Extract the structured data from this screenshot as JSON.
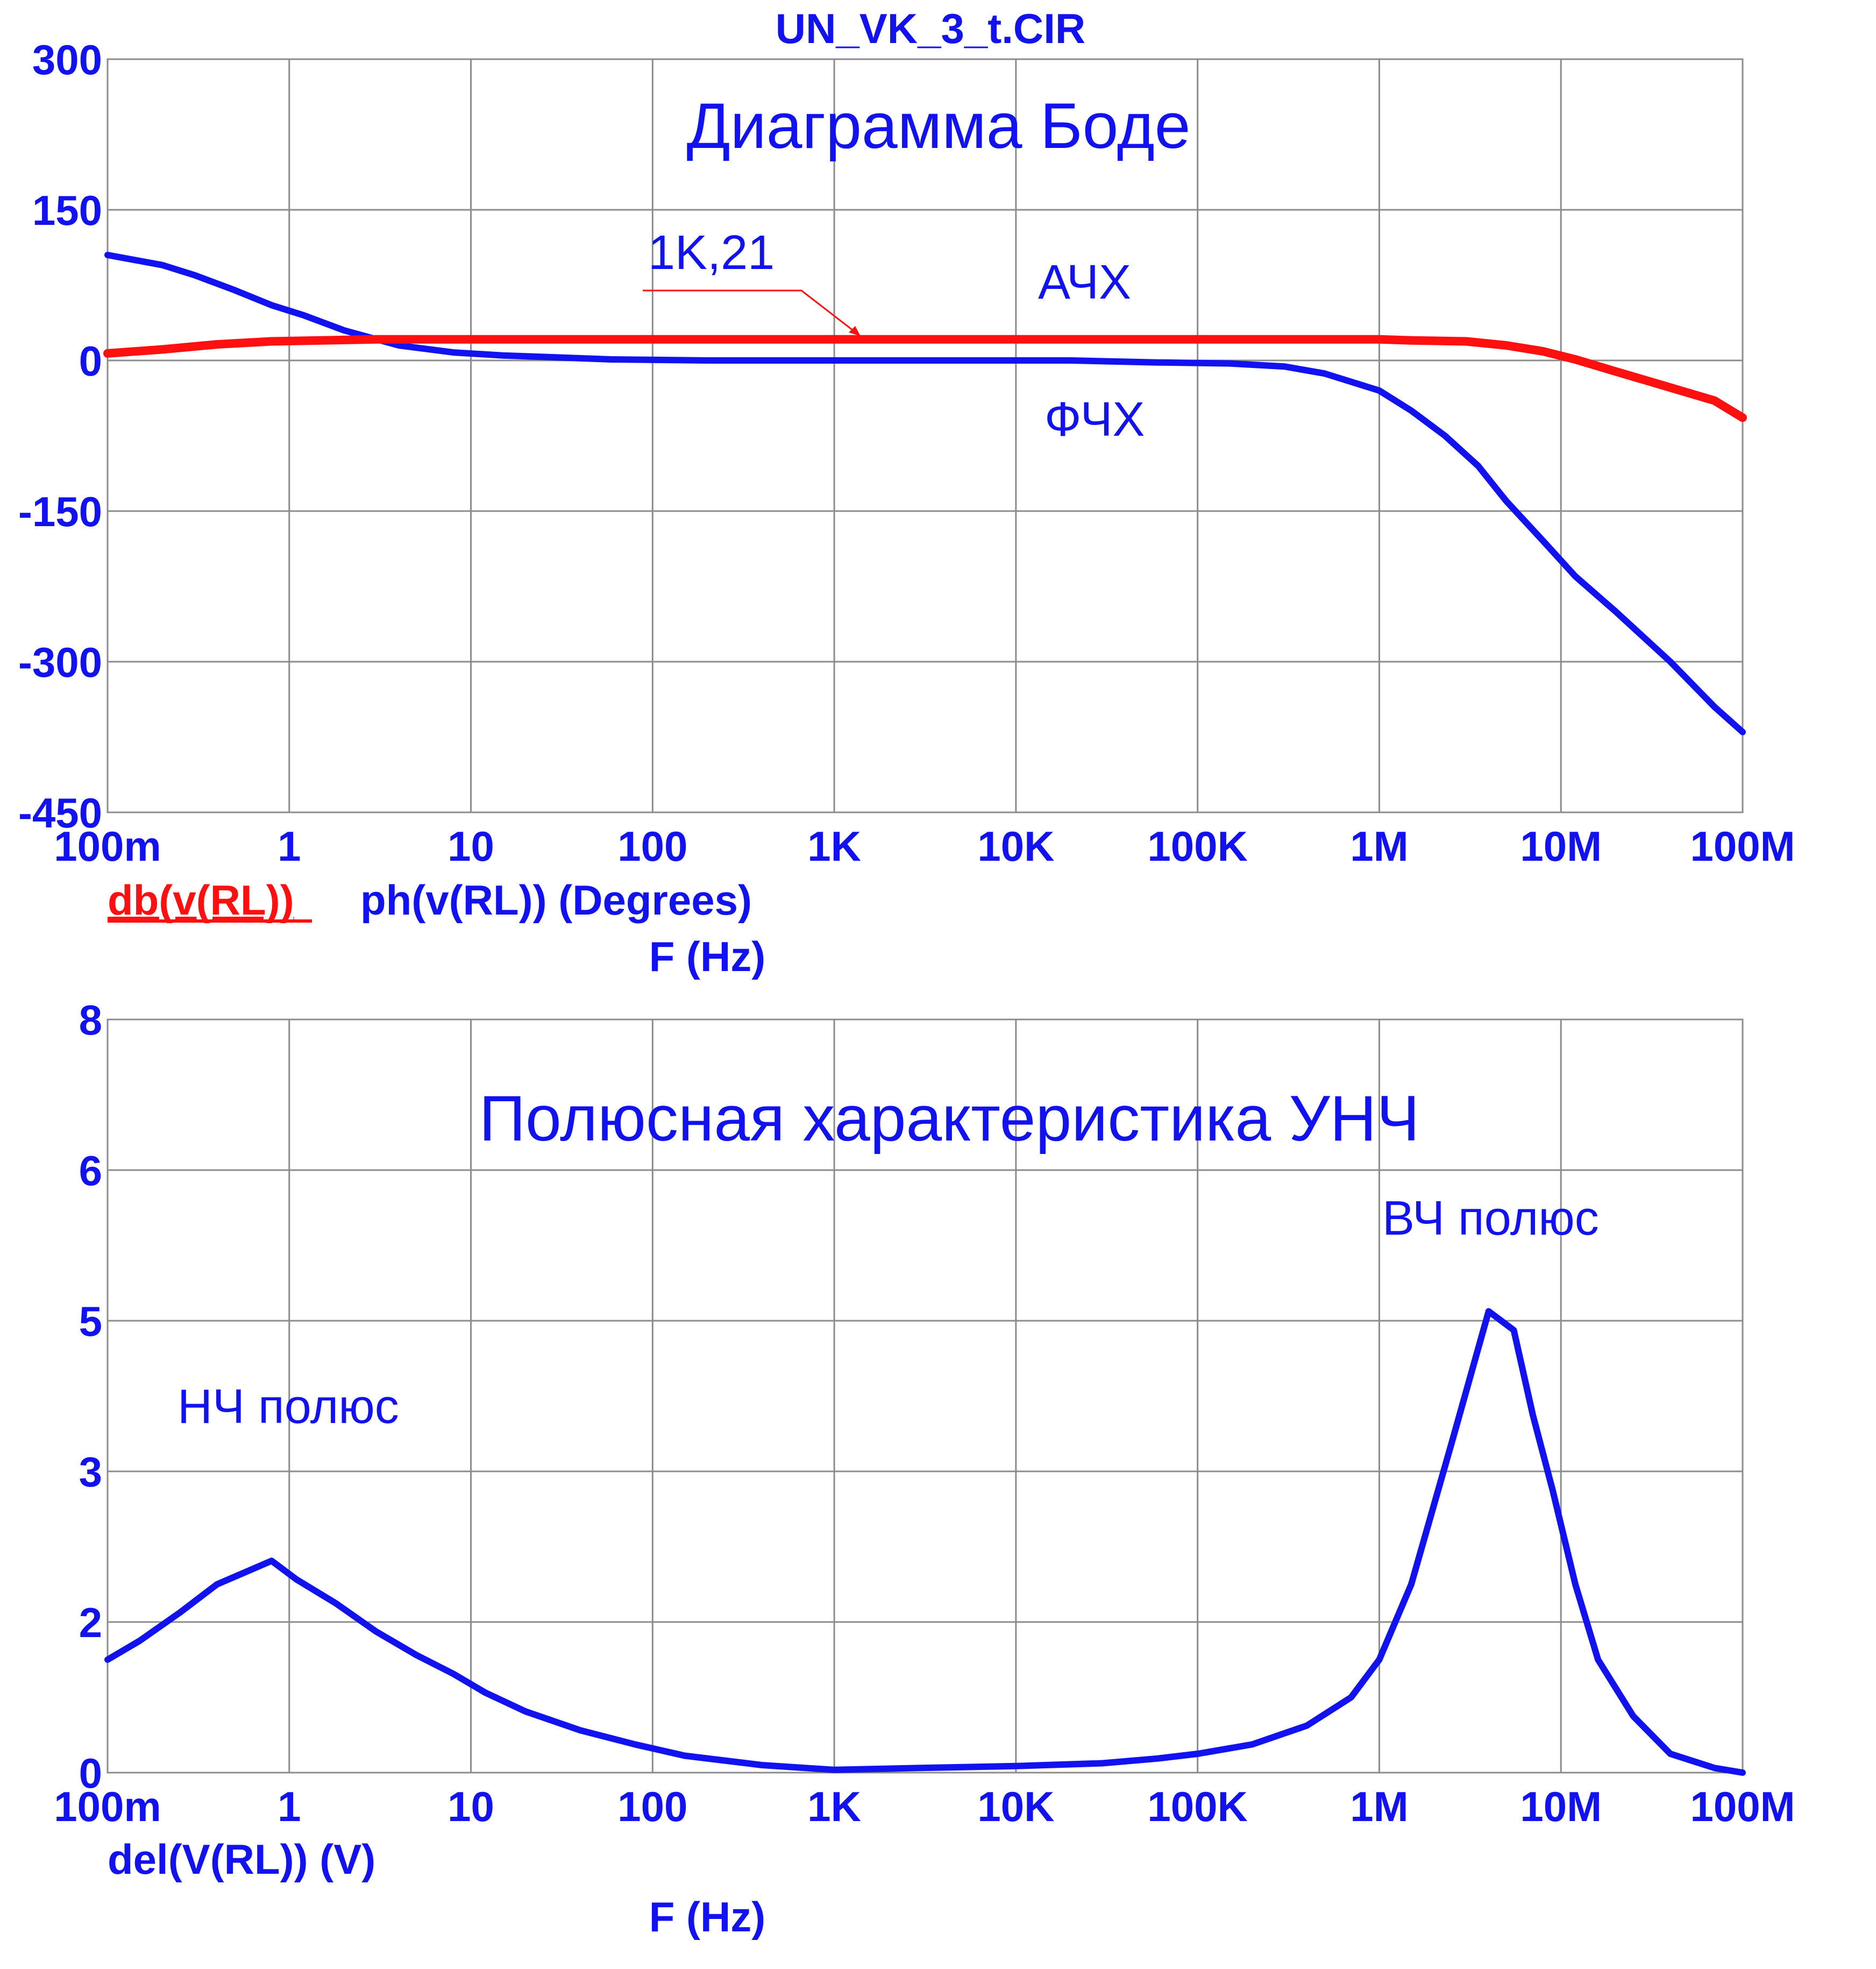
{
  "title": "UN_VK_3_t.CIR",
  "colors": {
    "blue": "#1212f0",
    "red": "#ff1010",
    "grid": "#8c8c8c"
  },
  "chart_data": [
    {
      "type": "line",
      "title": "Диаграмма Боде",
      "x_scale": "log",
      "x_label": "F (Hz)",
      "xlim": [
        0.1,
        100000000
      ],
      "x_tick_labels": [
        "100m",
        "1",
        "10",
        "100",
        "1K",
        "10K",
        "100K",
        "1M",
        "10M",
        "100M"
      ],
      "ylim": [
        -450,
        300
      ],
      "y_tick_labels": [
        "300",
        "150",
        "0",
        "-150",
        "-300",
        "-450"
      ],
      "grid": true,
      "legend": [
        "db(v(RL))",
        "ph(v(RL)) (Degrees)"
      ],
      "annotations": {
        "label_1k": "1K,21",
        "achx": "АЧХ",
        "fchx": "ФЧХ"
      },
      "series": [
        {
          "name": "db(v(RL))",
          "color": "#ff1010",
          "x": [
            0.1,
            0.2,
            0.4,
            0.8,
            1.5,
            3,
            10,
            100,
            1000,
            10000,
            100000,
            1000000,
            1500000,
            3000000,
            5000000,
            8000000,
            12000000,
            20000000,
            40000000,
            70000000,
            100000000
          ],
          "y": [
            7,
            11,
            16,
            19,
            20,
            21,
            21,
            21,
            21,
            21,
            21,
            21,
            20,
            19,
            15,
            9,
            1,
            -11,
            -27,
            -40,
            -57
          ]
        },
        {
          "name": "ph(v(RL)) (Degrees)",
          "color": "#1212f0",
          "x": [
            0.1,
            0.2,
            0.3,
            0.5,
            0.8,
            1.2,
            2,
            4,
            8,
            15,
            30,
            60,
            200,
            1000,
            5000,
            20000,
            60000,
            150000,
            300000,
            500000,
            1000000,
            1500000,
            2300000,
            3500000,
            5000000,
            8000000,
            12000000,
            20000000,
            40000000,
            70000000,
            100000000
          ],
          "y": [
            105,
            95,
            85,
            70,
            55,
            45,
            30,
            15,
            8,
            5,
            3,
            1,
            0,
            0,
            0,
            0,
            -2,
            -3,
            -6,
            -13,
            -30,
            -50,
            -75,
            -105,
            -140,
            -180,
            -215,
            -250,
            -300,
            -345,
            -370
          ]
        }
      ]
    },
    {
      "type": "line",
      "title": "Полюсная характеристика УНЧ",
      "x_scale": "log",
      "x_label": "F (Hz)",
      "xlim": [
        0.1,
        100000000
      ],
      "x_tick_labels": [
        "100m",
        "1",
        "10",
        "100",
        "1K",
        "10K",
        "100K",
        "1M",
        "10M",
        "100M"
      ],
      "ylim": [
        0,
        8
      ],
      "y_tick_labels": [
        "8",
        "6",
        "5",
        "3",
        "2",
        "0"
      ],
      "grid": true,
      "legend": [
        "del(V(RL)) (V)"
      ],
      "annotations": {
        "lf_pole": "НЧ полюс",
        "hf_pole": "ВЧ полюс"
      },
      "series": [
        {
          "name": "del(V(RL)) (V)",
          "color": "#1212f0",
          "x": [
            0.1,
            0.15,
            0.25,
            0.4,
            0.8,
            1.1,
            1.8,
            3,
            5,
            8,
            12,
            20,
            40,
            80,
            150,
            400,
            1000,
            3000,
            10000,
            30000,
            60000,
            100000,
            200000,
            400000,
            700000,
            1000000,
            1500000,
            2500000,
            4000000,
            5500000,
            7000000,
            9000000,
            12000000,
            16000000,
            25000000,
            40000000,
            70000000,
            100000000
          ],
          "y": [
            1.2,
            1.4,
            1.7,
            2.0,
            2.25,
            2.05,
            1.8,
            1.5,
            1.25,
            1.05,
            0.85,
            0.65,
            0.45,
            0.3,
            0.18,
            0.08,
            0.03,
            0.05,
            0.07,
            0.1,
            0.15,
            0.2,
            0.3,
            0.5,
            0.8,
            1.2,
            2.0,
            3.5,
            4.9,
            4.7,
            3.8,
            3.0,
            2.0,
            1.2,
            0.6,
            0.2,
            0.05,
            0.0
          ]
        }
      ]
    }
  ]
}
